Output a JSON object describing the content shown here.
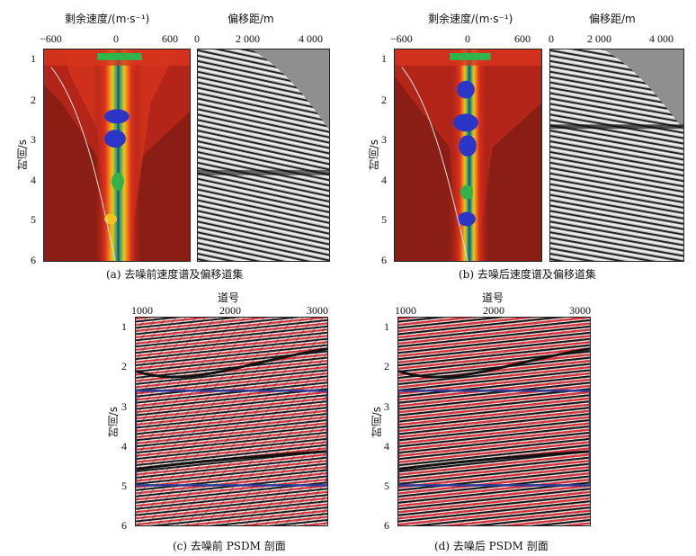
{
  "panel_a": {
    "spectrum_title": "剩余速度/(m·s⁻¹)",
    "spectrum_ticks": [
      "−600",
      "0",
      "600"
    ],
    "gather_title": "偏移距/m",
    "gather_ticks": [
      "0",
      "2 000",
      "4 000"
    ],
    "y_label": "时间/s",
    "y_ticks": [
      "1",
      "2",
      "3",
      "4",
      "5",
      "6"
    ],
    "caption": "(a) 去噪前速度谱及偏移道集"
  },
  "panel_b": {
    "spectrum_title": "剩余速度/(m·s⁻¹)",
    "spectrum_ticks": [
      "−600",
      "0",
      "600"
    ],
    "gather_title": "偏移距/m",
    "gather_ticks": [
      "0",
      "2 000",
      "4 000"
    ],
    "y_label": "时间/s",
    "y_ticks": [
      "1",
      "2",
      "3",
      "4",
      "5",
      "6"
    ],
    "caption": "(b) 去噪后速度谱及偏移道集"
  },
  "panel_c": {
    "x_title": "道号",
    "x_ticks": [
      "1000",
      "2000",
      "3000"
    ],
    "y_label": "时间/s",
    "y_ticks": [
      "1",
      "2",
      "3",
      "4",
      "5",
      "6"
    ],
    "caption": "(c) 去噪前 PSDM 剖面",
    "box_color": "#2b3a9a"
  },
  "panel_d": {
    "x_title": "道号",
    "x_ticks": [
      "1000",
      "2000",
      "3000"
    ],
    "y_label": "时间/s",
    "y_ticks": [
      "1",
      "2",
      "3",
      "4",
      "5",
      "6"
    ],
    "caption": "(d) 去噪后 PSDM 剖面",
    "box_color": "#2b3a9a"
  },
  "colors": {
    "spectrum_bg": "#8a1e14",
    "gather_bg": "#b8b8b8",
    "section_red": "#d8323a"
  }
}
